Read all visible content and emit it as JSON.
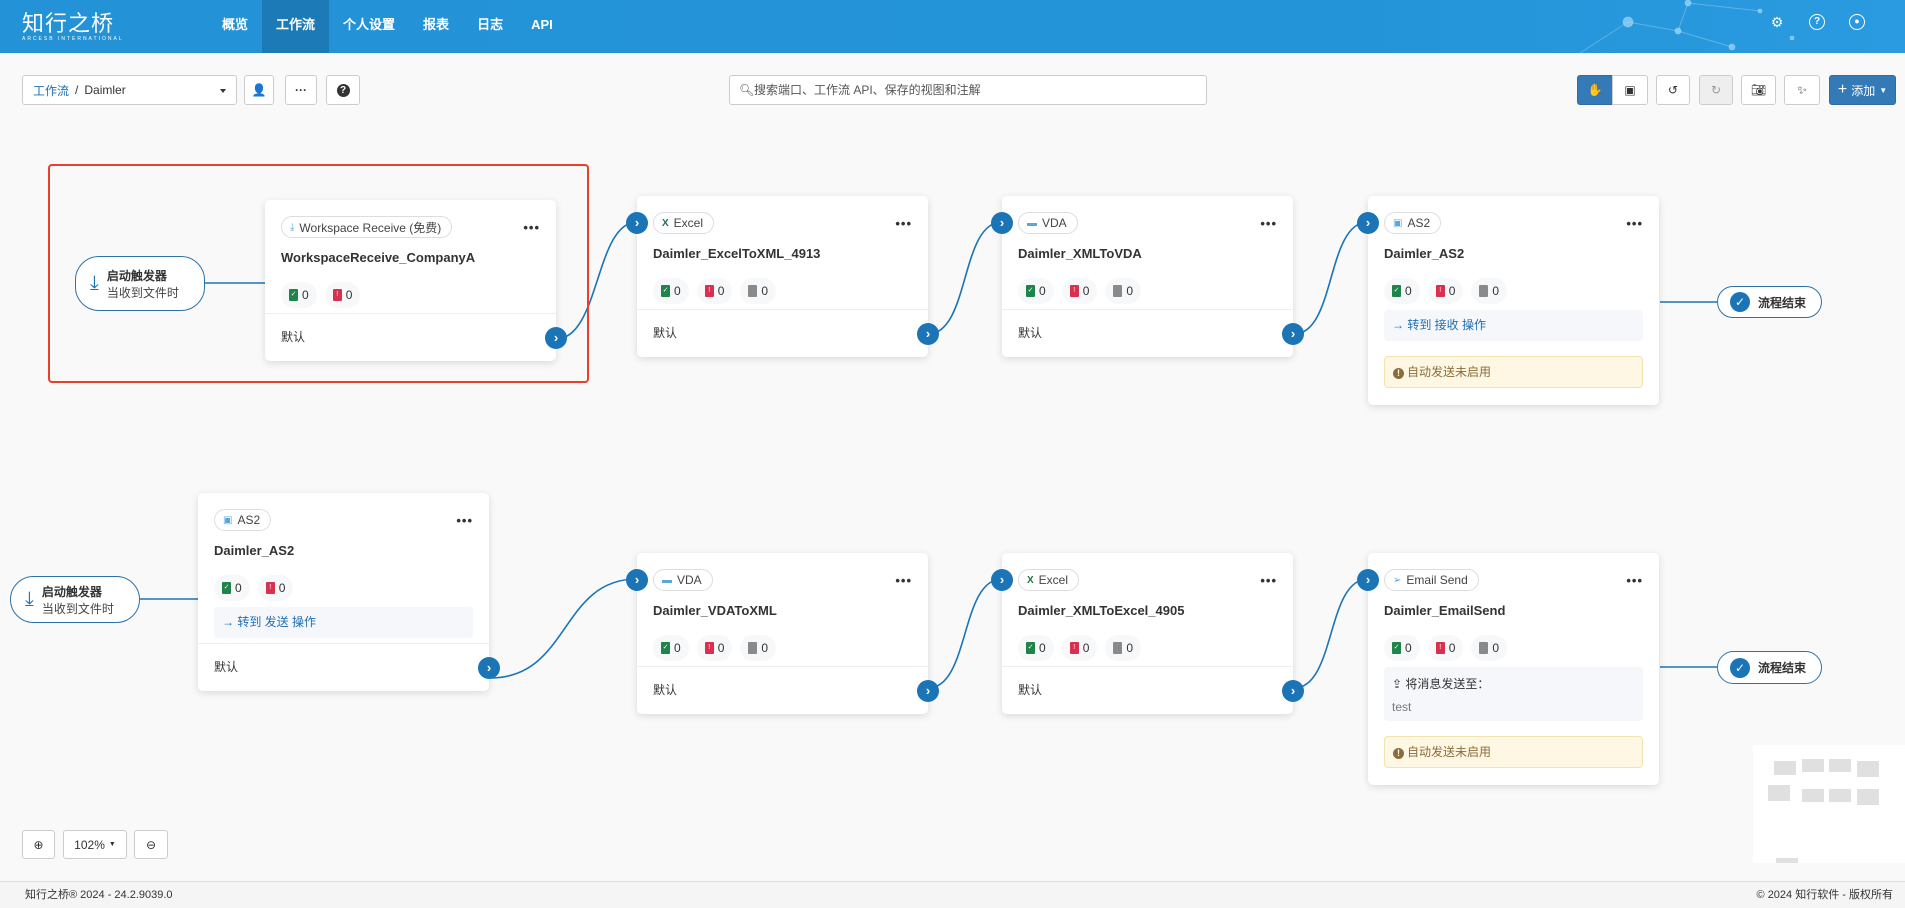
{
  "nav": {
    "logo": "知行之桥",
    "logo_sub": "ARCESB INTERNATIONAL",
    "items": [
      {
        "label": "概览"
      },
      {
        "label": "工作流",
        "active": true
      },
      {
        "label": "个人设置"
      },
      {
        "label": "报表"
      },
      {
        "label": "日志"
      },
      {
        "label": "API"
      }
    ],
    "icons": [
      "gear-icon",
      "help-icon",
      "user-circle-icon"
    ]
  },
  "toolbar": {
    "breadcrumb_root": "工作流",
    "breadcrumb_sep": "/",
    "breadcrumb_current": "Daimler",
    "search_placeholder": "搜索端口、工作流 API、保存的视图和注解",
    "add_label": "添加"
  },
  "triggers": [
    {
      "title": "启动触发器",
      "subtitle": "当收到文件时"
    },
    {
      "title": "启动触发器",
      "subtitle": "当收到文件时"
    }
  ],
  "end_label": "流程结束",
  "cards": [
    {
      "badge": "Workspace Receive (免费)",
      "icon": "download-icon",
      "title": "WorkspaceReceive_CompanyA",
      "stats": [
        "0",
        "0"
      ],
      "footer": "默认",
      "selected": true
    },
    {
      "badge": "Excel",
      "icon": "excel-icon",
      "title": "Daimler_ExcelToXML_4913",
      "stats": [
        "0",
        "0",
        "0"
      ],
      "footer": "默认"
    },
    {
      "badge": "VDA",
      "icon": "vda-icon",
      "title": "Daimler_XMLToVDA",
      "stats": [
        "0",
        "0",
        "0"
      ],
      "footer": "默认"
    },
    {
      "badge": "AS2",
      "icon": "as2-icon",
      "title": "Daimler_AS2",
      "stats": [
        "0",
        "0",
        "0"
      ],
      "goto": "→ 转到 接收 操作",
      "warning": "自动发送未启用"
    },
    {
      "badge": "AS2",
      "icon": "as2-icon",
      "title": "Daimler_AS2",
      "stats": [
        "0",
        "0"
      ],
      "goto": "→ 转到 发送 操作",
      "footer": "默认"
    },
    {
      "badge": "VDA",
      "icon": "vda-icon",
      "title": "Daimler_VDAToXML",
      "stats": [
        "0",
        "0",
        "0"
      ],
      "footer": "默认"
    },
    {
      "badge": "Excel",
      "icon": "excel-icon",
      "title": "Daimler_XMLToExcel_4905",
      "stats": [
        "0",
        "0",
        "0"
      ],
      "footer": "默认"
    },
    {
      "badge": "Email Send",
      "icon": "send-icon",
      "title": "Daimler_EmailSend",
      "stats": [
        "0",
        "0",
        "0"
      ],
      "mail_label": "将消息发送至：",
      "mail_to": "test",
      "warning": "自动发送未启用"
    }
  ],
  "zoom": {
    "level": "102%"
  },
  "footer": {
    "left": "知行之桥® 2024 - 24.2.9039.0",
    "right": "© 2024 知行软件 - 版权所有"
  },
  "colors": {
    "nav": "#2392d6",
    "primary": "#337ab7",
    "connector": "#1a74b5",
    "selection": "#e8412b"
  }
}
